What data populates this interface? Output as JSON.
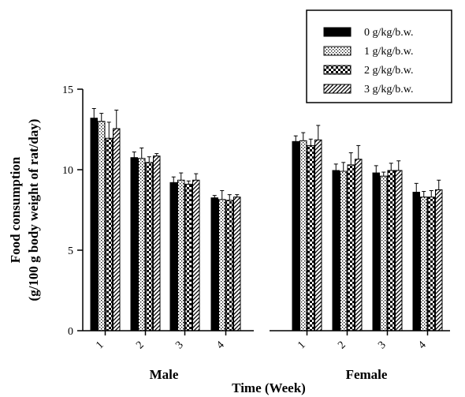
{
  "chart_data": {
    "type": "bar",
    "ylabel_line1": "Food consumption",
    "ylabel_line2": "(g/100 g body weight of rat/day)",
    "xlabel": "Time (Week)",
    "ylim": [
      0,
      15
    ],
    "yticks": [
      "0",
      "5",
      "10",
      "15"
    ],
    "legend_position": "top-right",
    "groups": [
      {
        "name": "Male",
        "categories": [
          "1",
          "2",
          "3",
          "4"
        ]
      },
      {
        "name": "Female",
        "categories": [
          "1",
          "2",
          "3",
          "4"
        ]
      }
    ],
    "series": [
      {
        "name": "0 g/kg/b.w.",
        "pattern": "solid",
        "values": [
          13.2,
          10.75,
          9.2,
          8.25,
          11.75,
          9.95,
          9.8,
          8.6
        ],
        "errors": [
          0.6,
          0.35,
          0.35,
          0.15,
          0.35,
          0.4,
          0.45,
          0.55
        ]
      },
      {
        "name": "1 g/kg/b.w.",
        "pattern": "dotted",
        "values": [
          13.0,
          10.7,
          9.35,
          8.15,
          11.8,
          9.9,
          9.6,
          8.3
        ],
        "errors": [
          0.5,
          0.65,
          0.45,
          0.55,
          0.5,
          0.55,
          0.25,
          0.35
        ]
      },
      {
        "name": "2 g/kg/b.w.",
        "pattern": "checker",
        "values": [
          11.95,
          10.45,
          9.1,
          8.1,
          11.5,
          10.3,
          9.95,
          8.3
        ],
        "errors": [
          1.0,
          0.35,
          0.2,
          0.35,
          0.4,
          0.75,
          0.45,
          0.4
        ]
      },
      {
        "name": "3 g/kg/b.w.",
        "pattern": "diagonal",
        "values": [
          12.55,
          10.85,
          9.35,
          8.3,
          11.85,
          10.65,
          9.95,
          8.75
        ],
        "errors": [
          1.15,
          0.15,
          0.4,
          0.15,
          0.9,
          0.85,
          0.6,
          0.6
        ]
      }
    ]
  }
}
